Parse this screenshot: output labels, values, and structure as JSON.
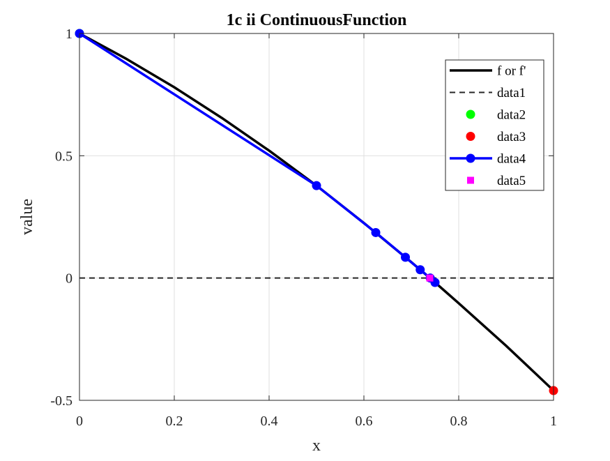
{
  "chart_data": {
    "type": "line",
    "title": "1c ii ContinuousFunction",
    "xlabel": "x",
    "ylabel": "value",
    "xlim": [
      0,
      1
    ],
    "ylim": [
      -0.5,
      1
    ],
    "x_ticks": [
      "0",
      "0.2",
      "0.4",
      "0.6",
      "0.8",
      "1"
    ],
    "y_ticks": [
      "-0.5",
      "0",
      "0.5",
      "1"
    ],
    "x_tick_values": [
      0,
      0.2,
      0.4,
      0.6,
      0.8,
      1
    ],
    "y_tick_values": [
      -0.5,
      0,
      0.5,
      1
    ],
    "grid": true,
    "legend_position": "top-right",
    "series": [
      {
        "name": "f or f'",
        "style": "solid-thick",
        "color": "#000000",
        "x": [
          0,
          0.1,
          0.2,
          0.3,
          0.4,
          0.5,
          0.6,
          0.7,
          0.75,
          0.8,
          0.9,
          1.0
        ],
        "y": [
          1.0,
          0.895,
          0.78,
          0.655,
          0.521,
          0.378,
          0.225,
          0.065,
          -0.018,
          -0.103,
          -0.277,
          -0.46
        ]
      },
      {
        "name": "data1",
        "style": "dashed",
        "color": "#262626",
        "x": [
          0,
          1
        ],
        "y": [
          0,
          0
        ]
      },
      {
        "name": "data2",
        "style": "marker-circle",
        "color": "#00ff00",
        "x": [
          0
        ],
        "y": [
          1
        ]
      },
      {
        "name": "data3",
        "style": "marker-circle",
        "color": "#ff0000",
        "x": [
          1
        ],
        "y": [
          -0.46
        ]
      },
      {
        "name": "data4",
        "style": "line-marker-circle",
        "color": "#0000ff",
        "x": [
          0,
          0.5,
          0.625,
          0.6875,
          0.71875,
          0.74,
          0.75
        ],
        "y": [
          1,
          0.378,
          0.186,
          0.085,
          0.034,
          0.0,
          -0.018
        ]
      },
      {
        "name": "data5",
        "style": "marker-square",
        "color": "#ff00ff",
        "x": [
          0.739
        ],
        "y": [
          0.0
        ]
      }
    ]
  }
}
